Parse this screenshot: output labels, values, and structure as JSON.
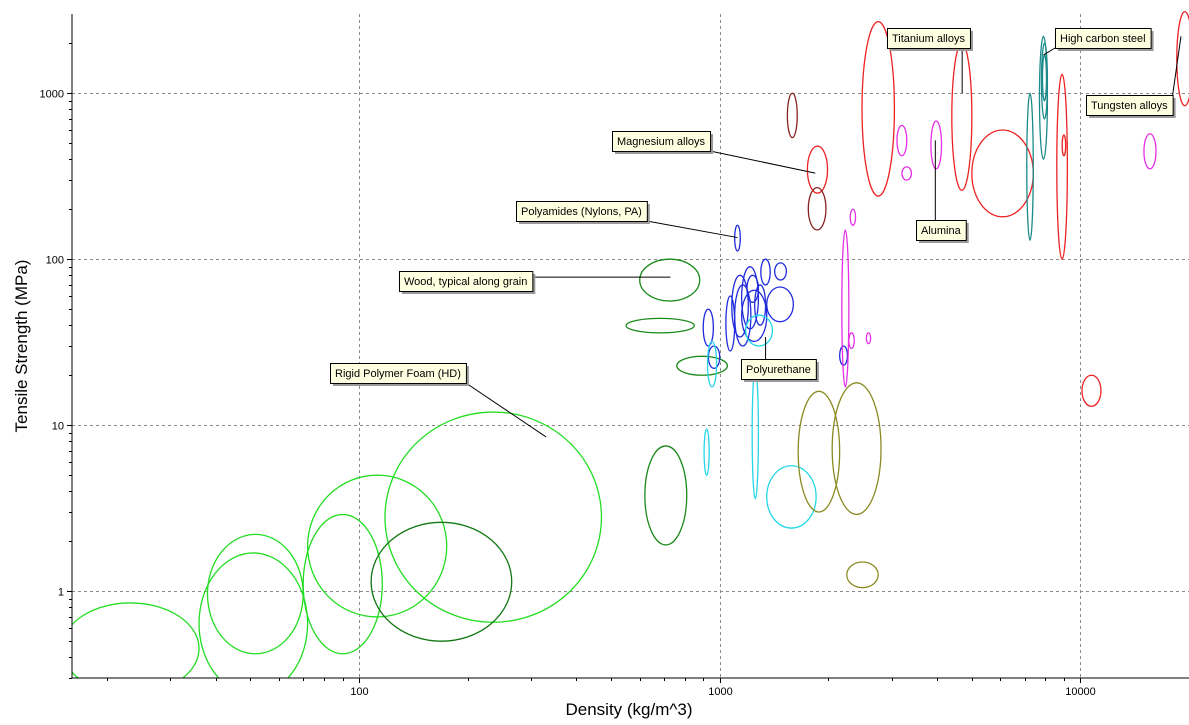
{
  "chart_data": {
    "type": "scatter",
    "title": "",
    "xlabel": "Density (kg/m^3)",
    "ylabel": "Tensile Strength (MPa)",
    "x_scale": "log",
    "y_scale": "log",
    "xlim": [
      16,
      20000
    ],
    "ylim": [
      0.3,
      3000
    ],
    "x_ticks": [
      100,
      1000,
      10000
    ],
    "x_tick_labels": [
      "100",
      "1000",
      "10000"
    ],
    "y_ticks": [
      1,
      10,
      100,
      1000
    ],
    "y_tick_labels": [
      "1",
      "10",
      "100",
      "1000"
    ],
    "grid": true,
    "legend": "none",
    "colors": {
      "foam": "#22dd22",
      "foam_dark": "#117711",
      "wood": "#1a8a1a",
      "polymer": "#1f2bdc",
      "elastomer": "#22d7e6",
      "metal": "#ee2222",
      "ceramic": "#e52ee5",
      "steel": "#1b8a8a",
      "composite": "#8a8a22",
      "brick": "#882222",
      "callout_fill": "#ffffe1"
    },
    "materials": [
      {
        "x": [
          15,
          36
        ],
        "y": [
          0.24,
          0.85
        ],
        "group": "foam"
      },
      {
        "x": [
          38,
          70
        ],
        "y": [
          0.42,
          2.2
        ],
        "group": "foam"
      },
      {
        "x": [
          36,
          72
        ],
        "y": [
          0.24,
          1.7
        ],
        "group": "foam"
      },
      {
        "x": [
          70,
          116
        ],
        "y": [
          0.42,
          2.9
        ],
        "group": "foam"
      },
      {
        "x": [
          72,
          175
        ],
        "y": [
          0.7,
          5.0
        ],
        "group": "foam"
      },
      {
        "x": [
          118,
          470
        ],
        "y": [
          0.65,
          12.0
        ],
        "group": "foam"
      },
      {
        "x": [
          108,
          265
        ],
        "y": [
          0.5,
          2.6
        ],
        "group": "foam_dark"
      },
      {
        "x": [
          620,
          810
        ],
        "y": [
          1.9,
          7.5
        ],
        "group": "wood"
      },
      {
        "x": [
          550,
          850
        ],
        "y": [
          36,
          44
        ],
        "group": "wood"
      },
      {
        "x": [
          600,
          880
        ],
        "y": [
          56,
          100
        ],
        "group": "wood"
      },
      {
        "x": [
          760,
          1050
        ],
        "y": [
          20,
          26
        ],
        "group": "wood"
      },
      {
        "x": [
          930,
          1000
        ],
        "y": [
          22,
          30
        ],
        "group": "polymer"
      },
      {
        "x": [
          1040,
          1100
        ],
        "y": [
          28,
          60
        ],
        "group": "polymer"
      },
      {
        "x": [
          1080,
          1200
        ],
        "y": [
          34,
          80
        ],
        "group": "polymer"
      },
      {
        "x": [
          1150,
          1280
        ],
        "y": [
          38,
          90
        ],
        "group": "polymer"
      },
      {
        "x": [
          1300,
          1380
        ],
        "y": [
          70,
          100
        ],
        "group": "polymer"
      },
      {
        "x": [
          1250,
          1340
        ],
        "y": [
          40,
          70
        ],
        "group": "polymer"
      },
      {
        "x": [
          1100,
          1140
        ],
        "y": [
          112,
          160
        ],
        "group": "polymer"
      },
      {
        "x": [
          1190,
          1280
        ],
        "y": [
          55,
          80
        ],
        "group": "polymer"
      },
      {
        "x": [
          1100,
          1220
        ],
        "y": [
          30,
          70
        ],
        "group": "polymer"
      },
      {
        "x": [
          1150,
          1350
        ],
        "y": [
          32,
          65
        ],
        "group": "polymer"
      },
      {
        "x": [
          1350,
          1600
        ],
        "y": [
          42,
          68
        ],
        "group": "polymer"
      },
      {
        "x": [
          1420,
          1530
        ],
        "y": [
          75,
          95
        ],
        "group": "polymer"
      },
      {
        "x": [
          900,
          960
        ],
        "y": [
          30,
          50
        ],
        "group": "polymer"
      },
      {
        "x": [
          2150,
          2260
        ],
        "y": [
          23,
          30
        ],
        "group": "polymer"
      },
      {
        "x": [
          905,
          935
        ],
        "y": [
          5.0,
          9.5
        ],
        "group": "elastomer"
      },
      {
        "x": [
          925,
          980
        ],
        "y": [
          17,
          32
        ],
        "group": "elastomer"
      },
      {
        "x": [
          1180,
          1400
        ],
        "y": [
          30,
          46
        ],
        "group": "elastomer"
      },
      {
        "x": [
          1230,
          1280
        ],
        "y": [
          3.6,
          22
        ],
        "group": "elastomer"
      },
      {
        "x": [
          1350,
          1850
        ],
        "y": [
          2.4,
          5.7
        ],
        "group": "elastomer"
      },
      {
        "x": [
          1540,
          1640
        ],
        "y": [
          540,
          1000
        ],
        "group": "brick"
      },
      {
        "x": [
          1750,
          1990
        ],
        "y": [
          250,
          480
        ],
        "group": "metal"
      },
      {
        "x": [
          1760,
          1970
        ],
        "y": [
          150,
          270
        ],
        "group": "brick"
      },
      {
        "x": [
          2480,
          3050
        ],
        "y": [
          240,
          2700
        ],
        "group": "metal"
      },
      {
        "x": [
          4400,
          5000
        ],
        "y": [
          260,
          2000
        ],
        "group": "metal"
      },
      {
        "x": [
          5000,
          7400
        ],
        "y": [
          180,
          600
        ],
        "group": "metal"
      },
      {
        "x": [
          8600,
          9200
        ],
        "y": [
          100,
          1300
        ],
        "group": "metal"
      },
      {
        "x": [
          8900,
          9100
        ],
        "y": [
          420,
          560
        ],
        "group": "metal"
      },
      {
        "x": [
          10100,
          11400
        ],
        "y": [
          13,
          20
        ],
        "group": "metal"
      },
      {
        "x": [
          18500,
          20500
        ],
        "y": [
          840,
          3100
        ],
        "group": "metal"
      },
      {
        "x": [
          7100,
          7400
        ],
        "y": [
          130,
          1000
        ],
        "group": "steel"
      },
      {
        "x": [
          7700,
          8100
        ],
        "y": [
          400,
          2200
        ],
        "group": "steel"
      },
      {
        "x": [
          7800,
          8100
        ],
        "y": [
          700,
          2000
        ],
        "group": "steel"
      },
      {
        "x": [
          7850,
          8050
        ],
        "y": [
          900,
          1700
        ],
        "group": "steel"
      },
      {
        "x": [
          2180,
          2280
        ],
        "y": [
          17,
          150
        ],
        "group": "ceramic"
      },
      {
        "x": [
          2300,
          2380
        ],
        "y": [
          160,
          200
        ],
        "group": "ceramic"
      },
      {
        "x": [
          2280,
          2360
        ],
        "y": [
          29,
          36
        ],
        "group": "ceramic"
      },
      {
        "x": [
          2550,
          2620
        ],
        "y": [
          31,
          36
        ],
        "group": "ceramic"
      },
      {
        "x": [
          3100,
          3300
        ],
        "y": [
          420,
          640
        ],
        "group": "ceramic"
      },
      {
        "x": [
          3200,
          3400
        ],
        "y": [
          300,
          360
        ],
        "group": "ceramic"
      },
      {
        "x": [
          3850,
          4120
        ],
        "y": [
          350,
          680
        ],
        "group": "ceramic"
      },
      {
        "x": [
          15000,
          16200
        ],
        "y": [
          350,
          570
        ],
        "group": "ceramic"
      },
      {
        "x": [
          1650,
          2150
        ],
        "y": [
          3.0,
          16
        ],
        "group": "composite"
      },
      {
        "x": [
          2050,
          2800
        ],
        "y": [
          2.9,
          18
        ],
        "group": "composite"
      },
      {
        "x": [
          2250,
          2750
        ],
        "y": [
          1.05,
          1.5
        ],
        "group": "composite"
      }
    ],
    "annotations": [
      {
        "text": "Titanium alloys",
        "x": 4700,
        "y": 1000
      },
      {
        "text": "High carbon steel",
        "x": 7900,
        "y": 1700
      },
      {
        "text": "Tungsten alloys",
        "x": 19000,
        "y": 2200
      },
      {
        "text": "Magnesium alloys",
        "x": 1840,
        "y": 330
      },
      {
        "text": "Alumina",
        "x": 3960,
        "y": 520
      },
      {
        "text": "Polyamides (Nylons, PA)",
        "x": 1120,
        "y": 135
      },
      {
        "text": "Wood, typical along grain",
        "x": 730,
        "y": 78
      },
      {
        "text": "Polyurethane",
        "x": 1340,
        "y": 34
      },
      {
        "text": "Rigid Polymer Foam (HD)",
        "x": 330,
        "y": 8.5
      }
    ]
  }
}
